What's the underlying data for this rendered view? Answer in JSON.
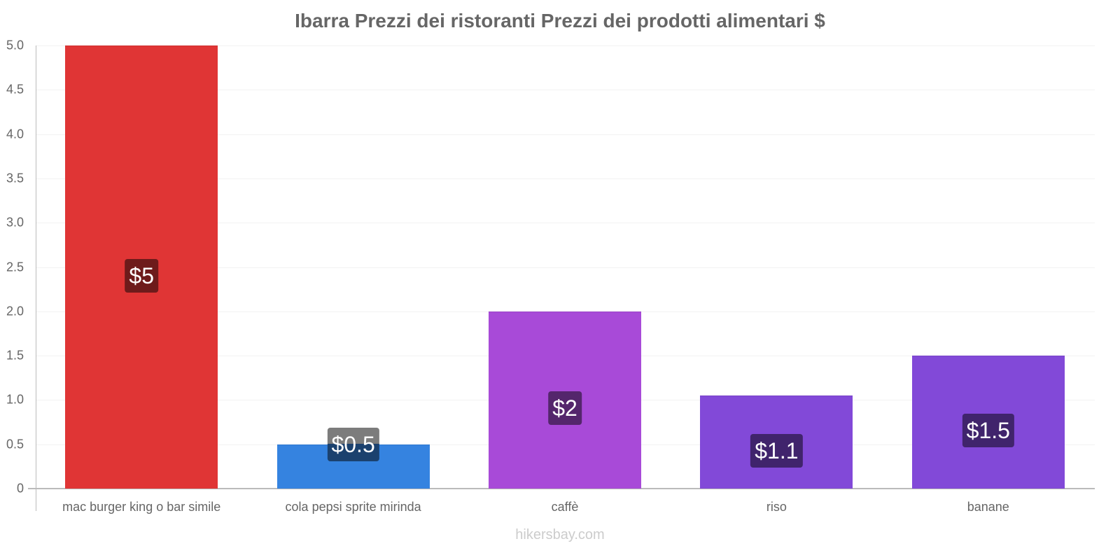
{
  "chart_data": {
    "type": "bar",
    "title": "Ibarra Prezzi dei ristoranti Prezzi dei prodotti alimentari $",
    "xlabel": "",
    "ylabel": "",
    "ylim": [
      0,
      5.0
    ],
    "yticks": [
      "0",
      "0.5",
      "1.0",
      "1.5",
      "2.0",
      "2.5",
      "3.0",
      "3.5",
      "4.0",
      "4.5",
      "5.0"
    ],
    "grid": true,
    "legend": null,
    "categories": [
      "mac burger king o bar simile",
      "cola pepsi sprite mirinda",
      "caffè",
      "riso",
      "banane"
    ],
    "values": [
      5.0,
      0.5,
      2.0,
      1.05,
      1.5
    ],
    "data_labels": [
      "$5",
      "$0.5",
      "$2",
      "$1.1",
      "$1.5"
    ],
    "bar_colors": [
      "#e03535",
      "#3583e0",
      "#a84ad8",
      "#8249d8",
      "#8249d8"
    ],
    "label_bg_colors": [
      "#6e1b1b",
      "#1b416e",
      "#54266c",
      "#40246c",
      "#40246c"
    ]
  },
  "watermark": "hikersbay.com"
}
